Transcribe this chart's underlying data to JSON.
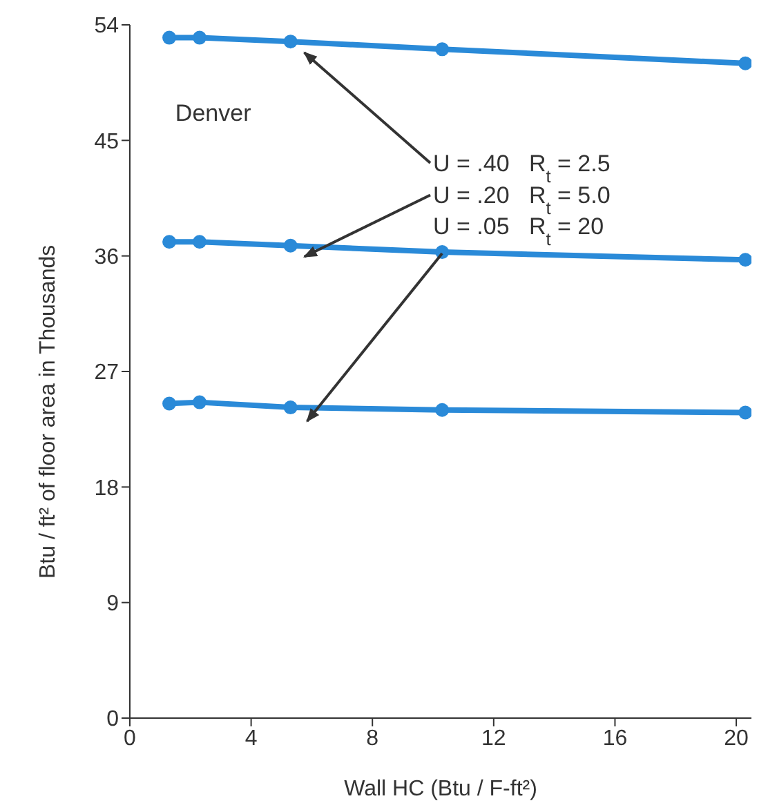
{
  "chart_data": {
    "type": "line",
    "xlabel": "Wall HC (Btu / F-ft²)",
    "ylabel": "Btu / ft² of floor area in Thousands",
    "x": [
      1.3,
      2.3,
      5.3,
      10.3,
      20.3
    ],
    "series": [
      {
        "name": "U = .40   R$_{t}$ = 2.5",
        "color": "#2a8ad8",
        "values": [
          53.0,
          53.0,
          52.7,
          52.1,
          51.0
        ]
      },
      {
        "name": "U = .20   R$_{t}$ = 5.0",
        "color": "#2a8ad8",
        "values": [
          37.1,
          37.1,
          36.8,
          36.3,
          35.7
        ]
      },
      {
        "name": "U = .05   R$_{t}$ = 20",
        "color": "#2a8ad8",
        "values": [
          24.5,
          24.6,
          24.2,
          24.0,
          23.8
        ]
      }
    ],
    "annotations": [
      "Denver"
    ],
    "xlim": [
      0,
      20.5
    ],
    "xticks": [
      0,
      4,
      8,
      12,
      16,
      20
    ],
    "ylim": [
      0,
      54
    ],
    "yticks": [
      0,
      9,
      18,
      27,
      36,
      45,
      54
    ],
    "grid": false,
    "legend": false,
    "marker": "circle",
    "line_style": "solid"
  }
}
